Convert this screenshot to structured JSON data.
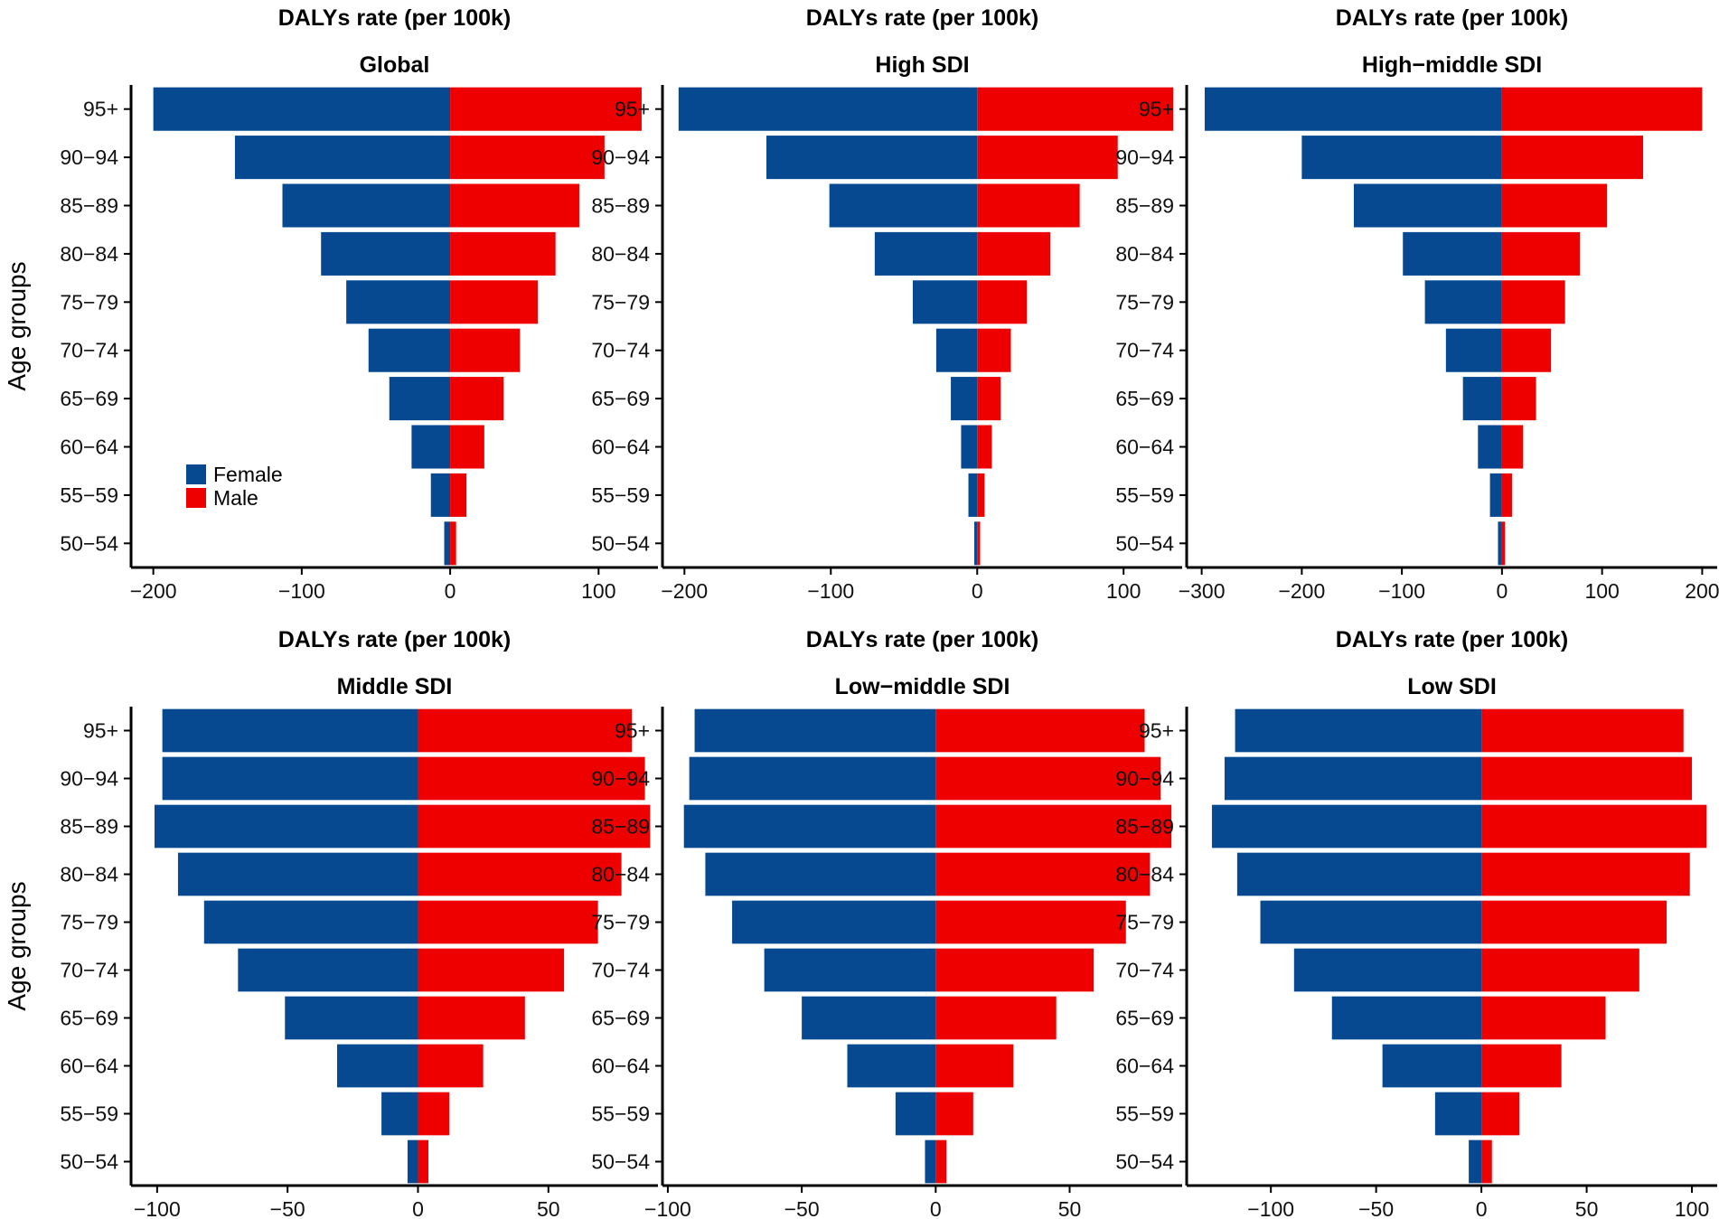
{
  "colors": {
    "female": "#064990",
    "male": "#ee0000"
  },
  "chart_data": [
    {
      "type": "bar",
      "title": "DALYs rate (per 100k)",
      "subtitle": "Global",
      "ylabel": "Age groups",
      "categories": [
        "50-54",
        "55-59",
        "60-64",
        "65-69",
        "70-74",
        "75-79",
        "80-84",
        "85-89",
        "90-94",
        "95+"
      ],
      "category_labels": [
        "50−54",
        "55−59",
        "60−64",
        "65−69",
        "70−74",
        "75−79",
        "80−84",
        "85−89",
        "90−94",
        "95+"
      ],
      "series": [
        {
          "name": "Female",
          "values": [
            -4,
            -13,
            -26,
            -41,
            -55,
            -70,
            -87,
            -113,
            -145,
            -200
          ]
        },
        {
          "name": "Male",
          "values": [
            4,
            11,
            23,
            36,
            47,
            59,
            71,
            87,
            104,
            129
          ]
        }
      ],
      "xlim": [
        -215,
        140
      ],
      "xticks": [
        -200,
        -100,
        0,
        100
      ],
      "xtick_labels": [
        "−200",
        "−100",
        "0",
        "100"
      ]
    },
    {
      "type": "bar",
      "title": "DALYs rate (per 100k)",
      "subtitle": "High SDI",
      "ylabel": "",
      "categories": [
        "50-54",
        "55-59",
        "60-64",
        "65-69",
        "70-74",
        "75-79",
        "80-84",
        "85-89",
        "90-94",
        "95+"
      ],
      "category_labels": [
        "50−54",
        "55−59",
        "60−64",
        "65−69",
        "70−74",
        "75−79",
        "80−84",
        "85−89",
        "90−94",
        "95+"
      ],
      "series": [
        {
          "name": "Female",
          "values": [
            -2,
            -6,
            -11,
            -18,
            -28,
            -44,
            -70,
            -101,
            -144,
            -204
          ]
        },
        {
          "name": "Male",
          "values": [
            2,
            5,
            10,
            16,
            23,
            34,
            50,
            70,
            96,
            134
          ]
        }
      ],
      "xlim": [
        -215,
        140
      ],
      "xticks": [
        -200,
        -100,
        0,
        100
      ],
      "xtick_labels": [
        "−200",
        "−100",
        "0",
        "100"
      ]
    },
    {
      "type": "bar",
      "title": "DALYs rate (per 100k)",
      "subtitle": "High−middle SDI",
      "ylabel": "",
      "categories": [
        "50-54",
        "55-59",
        "60-64",
        "65-69",
        "70-74",
        "75-79",
        "80-84",
        "85-89",
        "90-94",
        "95+"
      ],
      "category_labels": [
        "50−54",
        "55−59",
        "60−64",
        "65−69",
        "70−74",
        "75−79",
        "80−84",
        "85−89",
        "90−94",
        "95+"
      ],
      "series": [
        {
          "name": "Female",
          "values": [
            -4,
            -12,
            -24,
            -39,
            -56,
            -77,
            -99,
            -148,
            -200,
            -297
          ]
        },
        {
          "name": "Male",
          "values": [
            3,
            10,
            21,
            34,
            49,
            63,
            78,
            105,
            141,
            200
          ]
        }
      ],
      "xlim": [
        -315,
        215
      ],
      "xticks": [
        -300,
        -200,
        -100,
        0,
        100,
        200
      ],
      "xtick_labels": [
        "−300",
        "−200",
        "−100",
        "0",
        "100",
        "200"
      ]
    },
    {
      "type": "bar",
      "title": "DALYs rate (per 100k)",
      "subtitle": "Middle SDI",
      "ylabel": "Age groups",
      "categories": [
        "50-54",
        "55-59",
        "60-64",
        "65-69",
        "70-74",
        "75-79",
        "80-84",
        "85-89",
        "90-94",
        "95+"
      ],
      "category_labels": [
        "50−54",
        "55−59",
        "60−64",
        "65−69",
        "70−74",
        "75−79",
        "80−84",
        "85−89",
        "90−94",
        "95+"
      ],
      "series": [
        {
          "name": "Female",
          "values": [
            -4,
            -14,
            -31,
            -51,
            -69,
            -82,
            -92,
            -101,
            -98,
            -98
          ]
        },
        {
          "name": "Male",
          "values": [
            4,
            12,
            25,
            41,
            56,
            69,
            78,
            89,
            87,
            82
          ]
        }
      ],
      "xlim": [
        -110,
        92
      ],
      "xticks": [
        -100,
        -50,
        0,
        50
      ],
      "xtick_labels": [
        "−100",
        "−50",
        "0",
        "50"
      ]
    },
    {
      "type": "bar",
      "title": "DALYs rate (per 100k)",
      "subtitle": "Low−middle SDI",
      "ylabel": "",
      "categories": [
        "50-54",
        "55-59",
        "60-64",
        "65-69",
        "70-74",
        "75-79",
        "80-84",
        "85-89",
        "90-94",
        "95+"
      ],
      "category_labels": [
        "50−54",
        "55−59",
        "60−64",
        "65−69",
        "70−74",
        "75−79",
        "80−84",
        "85−89",
        "90−94",
        "95+"
      ],
      "series": [
        {
          "name": "Female",
          "values": [
            -4,
            -15,
            -33,
            -50,
            -64,
            -76,
            -86,
            -94,
            -92,
            -90
          ]
        },
        {
          "name": "Male",
          "values": [
            4,
            14,
            29,
            45,
            59,
            71,
            80,
            88,
            84,
            78
          ]
        }
      ],
      "xlim": [
        -102,
        92
      ],
      "xticks": [
        -100,
        -50,
        0,
        50
      ],
      "xtick_labels": [
        "−100",
        "−50",
        "0",
        "50"
      ]
    },
    {
      "type": "bar",
      "title": "DALYs rate (per 100k)",
      "subtitle": "Low SDI",
      "ylabel": "",
      "categories": [
        "50-54",
        "55-59",
        "60-64",
        "65-69",
        "70-74",
        "75-79",
        "80-84",
        "85-89",
        "90-94",
        "95+"
      ],
      "category_labels": [
        "50−54",
        "55−59",
        "60−64",
        "65−69",
        "70−74",
        "75−79",
        "80−84",
        "85−89",
        "90−94",
        "95+"
      ],
      "series": [
        {
          "name": "Female",
          "values": [
            -6,
            -22,
            -47,
            -71,
            -89,
            -105,
            -116,
            -128,
            -122,
            -117
          ]
        },
        {
          "name": "Male",
          "values": [
            5,
            18,
            38,
            59,
            75,
            88,
            99,
            107,
            100,
            96
          ]
        }
      ],
      "xlim": [
        -140,
        112
      ],
      "xticks": [
        -100,
        -50,
        0,
        50,
        100
      ],
      "xtick_labels": [
        "−100",
        "−50",
        "0",
        "50",
        "100"
      ]
    }
  ],
  "legend": {
    "items": [
      "Female",
      "Male"
    ]
  }
}
